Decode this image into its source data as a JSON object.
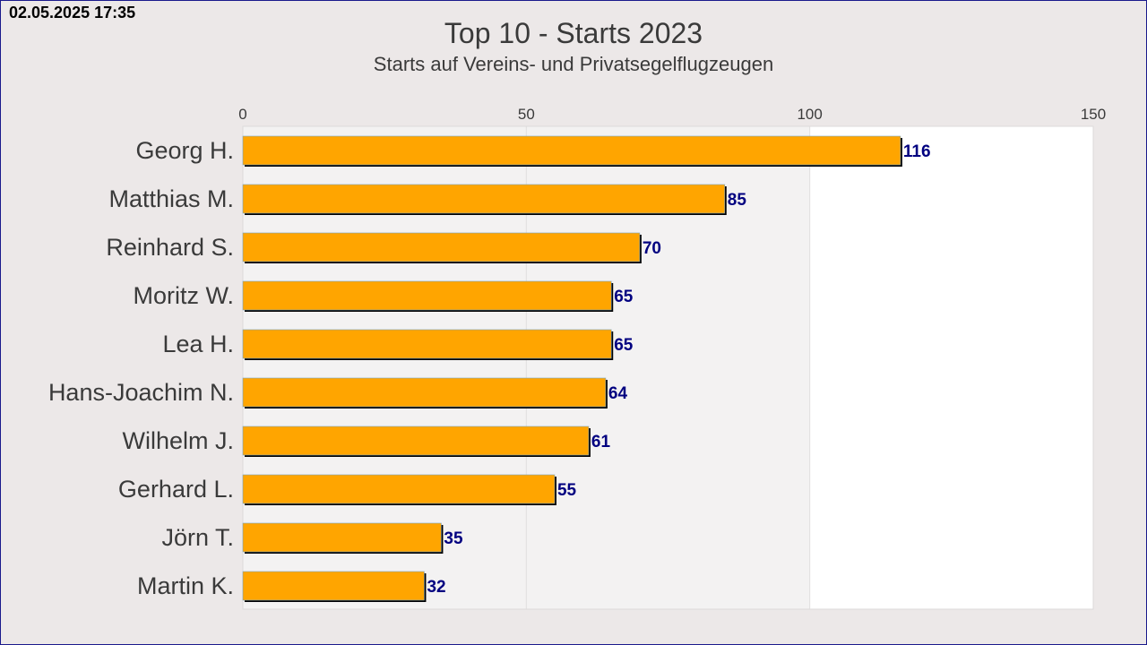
{
  "timestamp": "02.05.2025 17:35",
  "colors": {
    "bar_fill": "#ffa500",
    "bar_shadow": "#000000",
    "value_label": "#000080",
    "frame_border": "#1a1a8c",
    "background": "#ece8e8",
    "band_light": "#f3f2f2",
    "band_white": "#ffffff"
  },
  "chart_data": {
    "type": "bar",
    "orientation": "horizontal",
    "title": "Top 10 - Starts 2023",
    "subtitle": "Starts auf Vereins- und Privatsegelflugzeugen",
    "categories": [
      "Georg H.",
      "Matthias M.",
      "Reinhard S.",
      "Moritz W.",
      "Lea H.",
      "Hans-Joachim N.",
      "Wilhelm J.",
      "Gerhard L.",
      "Jörn T.",
      "Martin K."
    ],
    "values": [
      116,
      85,
      70,
      65,
      65,
      64,
      61,
      55,
      35,
      32
    ],
    "xlim": [
      0,
      150
    ],
    "xticks": [
      0,
      50,
      100,
      150
    ],
    "x_axis_position": "top",
    "grid": true,
    "legend": "none",
    "data_labels": true
  }
}
